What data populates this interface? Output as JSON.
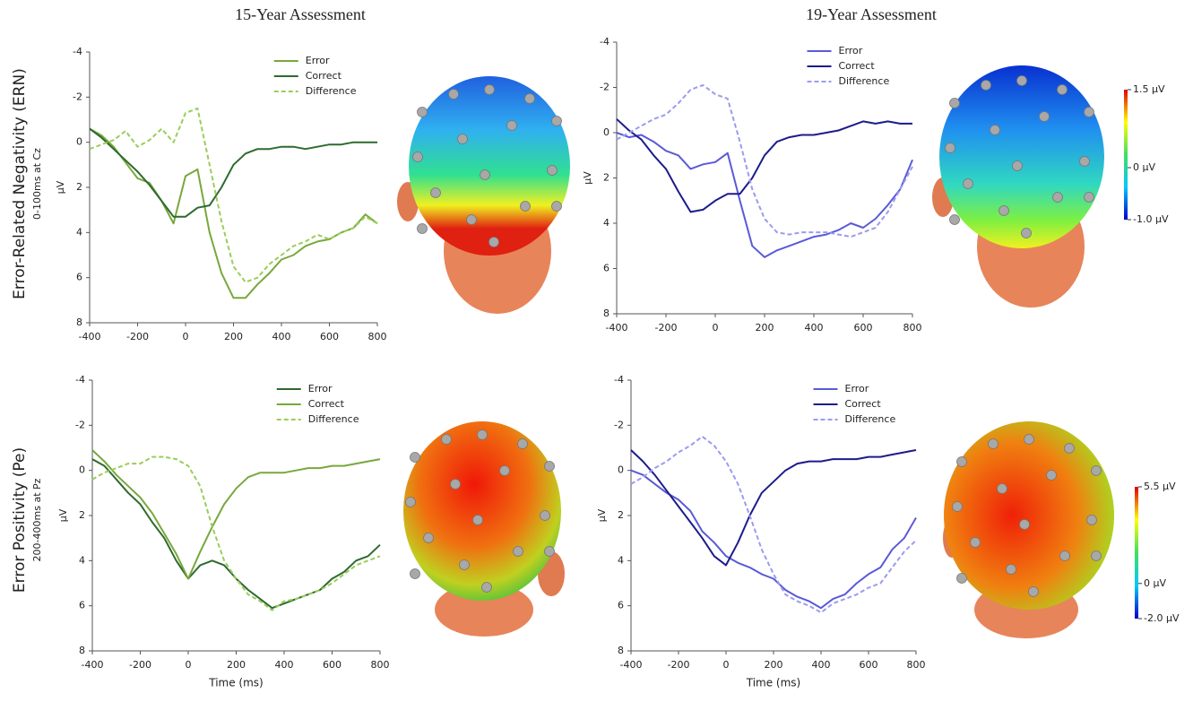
{
  "column_titles": [
    "15-Year Assessment",
    "19-Year Assessment"
  ],
  "row_labels": [
    {
      "title": "Error-Related Negativity (ERN)",
      "subtitle": "0-100ms at Cz"
    },
    {
      "title": "Error Positivity (Pe)",
      "subtitle": "200-400ms at Pz"
    }
  ],
  "colorbars": [
    {
      "lim": [
        -1.0,
        1.5
      ],
      "colors": [
        "#0000c8",
        "#00c8ff",
        "#40e060",
        "#ffff00",
        "#e00000"
      ],
      "ticks": [
        {
          "value": 1.5,
          "label": "1.5 μV"
        },
        {
          "value": 0,
          "label": "0 μV"
        },
        {
          "value": -1.0,
          "label": "-1.0 μV"
        }
      ]
    },
    {
      "lim": [
        -2.0,
        5.5
      ],
      "colors": [
        "#0000c8",
        "#00c8ff",
        "#40e060",
        "#ffff00",
        "#e00000"
      ],
      "ticks": [
        {
          "value": 5.5,
          "label": "5.5 μV"
        },
        {
          "value": 0,
          "label": "0 μV"
        },
        {
          "value": -2.0,
          "label": "-2.0 μV"
        }
      ]
    }
  ],
  "chart_data": [
    {
      "type": "line",
      "ylabel": "μV",
      "xlim": [
        -400,
        800
      ],
      "xticks": [
        -400,
        -200,
        0,
        200,
        400,
        600,
        800
      ],
      "ylim": [
        -4,
        8
      ],
      "y_inverted": true,
      "yticks": [
        -4,
        -2,
        0,
        2,
        4,
        6,
        8
      ],
      "legend": "upper right",
      "x": [
        -400,
        -350,
        -300,
        -250,
        -200,
        -150,
        -100,
        -50,
        0,
        50,
        100,
        150,
        200,
        250,
        300,
        350,
        400,
        450,
        500,
        550,
        600,
        650,
        700,
        750,
        800
      ],
      "series": [
        {
          "name": "Error",
          "color": "#78a83c",
          "dashed": false,
          "values": [
            -0.6,
            -0.3,
            0.2,
            0.9,
            1.6,
            1.8,
            2.6,
            3.6,
            1.5,
            1.2,
            4.0,
            5.8,
            6.9,
            6.9,
            6.3,
            5.8,
            5.2,
            5.0,
            4.6,
            4.4,
            4.3,
            4.0,
            3.8,
            3.2,
            3.6
          ]
        },
        {
          "name": "Correct",
          "color": "#2e6a2e",
          "dashed": false,
          "values": [
            -0.6,
            -0.2,
            0.3,
            0.8,
            1.3,
            1.9,
            2.6,
            3.3,
            3.3,
            2.9,
            2.8,
            2.0,
            1.0,
            0.5,
            0.3,
            0.3,
            0.2,
            0.2,
            0.3,
            0.2,
            0.1,
            0.1,
            0,
            0,
            0
          ]
        },
        {
          "name": "Difference",
          "color": "#9acd5a",
          "dashed": true,
          "values": [
            0.3,
            0.1,
            -0.1,
            -0.5,
            0.2,
            -0.1,
            -0.6,
            0,
            -1.3,
            -1.5,
            1.0,
            3.5,
            5.5,
            6.2,
            6.0,
            5.4,
            5.0,
            4.6,
            4.4,
            4.1,
            4.3,
            4.0,
            3.8,
            3.3,
            3.6
          ]
        }
      ]
    },
    {
      "type": "line",
      "ylabel": "μV",
      "xlim": [
        -400,
        800
      ],
      "xticks": [
        -400,
        -200,
        0,
        200,
        400,
        600,
        800
      ],
      "ylim": [
        -4,
        8
      ],
      "y_inverted": true,
      "yticks": [
        -4,
        -2,
        0,
        2,
        4,
        6,
        8
      ],
      "legend": "upper right",
      "x": [
        -400,
        -350,
        -300,
        -250,
        -200,
        -150,
        -100,
        -50,
        0,
        50,
        100,
        150,
        200,
        250,
        300,
        350,
        400,
        450,
        500,
        550,
        600,
        650,
        700,
        750,
        800
      ],
      "series": [
        {
          "name": "Error",
          "color": "#5a5ad8",
          "dashed": false,
          "values": [
            0.0,
            0.2,
            0.1,
            0.4,
            0.8,
            1.0,
            1.6,
            1.4,
            1.3,
            0.9,
            3.0,
            5.0,
            5.5,
            5.2,
            5.0,
            4.8,
            4.6,
            4.5,
            4.3,
            4.0,
            4.2,
            3.8,
            3.2,
            2.5,
            1.2
          ]
        },
        {
          "name": "Correct",
          "color": "#1c1c8c",
          "dashed": false,
          "values": [
            -0.6,
            -0.1,
            0.3,
            1.0,
            1.6,
            2.6,
            3.5,
            3.4,
            3.0,
            2.7,
            2.7,
            2.0,
            1.0,
            0.4,
            0.2,
            0.1,
            0.1,
            0,
            -0.1,
            -0.3,
            -0.5,
            -0.4,
            -0.5,
            -0.4,
            -0.4
          ]
        },
        {
          "name": "Difference",
          "color": "#9b9bef",
          "dashed": true,
          "values": [
            0.3,
            0,
            -0.3,
            -0.6,
            -0.8,
            -1.3,
            -1.9,
            -2.1,
            -1.7,
            -1.5,
            0.4,
            2.5,
            3.8,
            4.4,
            4.5,
            4.4,
            4.4,
            4.4,
            4.5,
            4.6,
            4.4,
            4.2,
            3.5,
            2.5,
            1.5
          ]
        }
      ]
    },
    {
      "type": "line",
      "ylabel": "μV",
      "xlabel": "Time (ms)",
      "xlim": [
        -400,
        800
      ],
      "xticks": [
        -400,
        -200,
        0,
        200,
        400,
        600,
        800
      ],
      "ylim": [
        -4,
        8
      ],
      "y_inverted": true,
      "yticks": [
        -4,
        -2,
        0,
        2,
        4,
        6,
        8
      ],
      "legend": "upper right",
      "x": [
        -400,
        -350,
        -300,
        -250,
        -200,
        -150,
        -100,
        -50,
        0,
        50,
        100,
        150,
        200,
        250,
        300,
        350,
        400,
        450,
        500,
        550,
        600,
        650,
        700,
        750,
        800
      ],
      "series": [
        {
          "name": "Error",
          "color": "#2e6a2e",
          "dashed": false,
          "values": [
            -0.5,
            -0.2,
            0.4,
            1.0,
            1.5,
            2.3,
            3.0,
            4.0,
            4.8,
            4.2,
            4.0,
            4.2,
            4.8,
            5.3,
            5.7,
            6.1,
            5.9,
            5.7,
            5.5,
            5.3,
            4.8,
            4.5,
            4.0,
            3.8,
            3.3
          ]
        },
        {
          "name": "Correct",
          "color": "#78a83c",
          "dashed": false,
          "values": [
            -0.9,
            -0.4,
            0.2,
            0.7,
            1.2,
            1.9,
            2.8,
            3.7,
            4.8,
            3.6,
            2.5,
            1.5,
            0.8,
            0.3,
            0.1,
            0.1,
            0.1,
            0,
            -0.1,
            -0.1,
            -0.2,
            -0.2,
            -0.3,
            -0.4,
            -0.5
          ]
        },
        {
          "name": "Difference",
          "color": "#9acd5a",
          "dashed": true,
          "values": [
            0.4,
            0.1,
            -0.1,
            -0.3,
            -0.3,
            -0.6,
            -0.6,
            -0.5,
            -0.2,
            0.7,
            2.5,
            4.0,
            4.8,
            5.5,
            5.8,
            6.2,
            5.8,
            5.7,
            5.5,
            5.3,
            5.0,
            4.6,
            4.2,
            4.0,
            3.8
          ]
        }
      ]
    },
    {
      "type": "line",
      "ylabel": "μV",
      "xlabel": "Time (ms)",
      "xlim": [
        -400,
        800
      ],
      "xticks": [
        -400,
        -200,
        0,
        200,
        400,
        600,
        800
      ],
      "ylim": [
        -4,
        8
      ],
      "y_inverted": true,
      "yticks": [
        -4,
        -2,
        0,
        2,
        4,
        6,
        8
      ],
      "legend": "upper right",
      "x": [
        -400,
        -350,
        -300,
        -250,
        -200,
        -150,
        -100,
        -50,
        0,
        50,
        100,
        150,
        200,
        250,
        300,
        350,
        400,
        450,
        500,
        550,
        600,
        650,
        700,
        750,
        800
      ],
      "series": [
        {
          "name": "Error",
          "color": "#5a5ad8",
          "dashed": false,
          "values": [
            0.0,
            0.2,
            0.6,
            1.0,
            1.3,
            1.8,
            2.7,
            3.2,
            3.8,
            4.1,
            4.3,
            4.6,
            4.8,
            5.3,
            5.6,
            5.8,
            6.1,
            5.7,
            5.5,
            5.0,
            4.6,
            4.3,
            3.5,
            3.0,
            2.1
          ]
        },
        {
          "name": "Correct",
          "color": "#1c1c8c",
          "dashed": false,
          "values": [
            -0.9,
            -0.4,
            0.2,
            0.9,
            1.6,
            2.3,
            3.0,
            3.8,
            4.2,
            3.2,
            2.0,
            1.0,
            0.5,
            0,
            -0.3,
            -0.4,
            -0.4,
            -0.5,
            -0.5,
            -0.5,
            -0.6,
            -0.6,
            -0.7,
            -0.8,
            -0.9
          ]
        },
        {
          "name": "Difference",
          "color": "#9b9bef",
          "dashed": true,
          "values": [
            0.6,
            0.3,
            -0.1,
            -0.4,
            -0.8,
            -1.1,
            -1.5,
            -1.1,
            -0.4,
            0.6,
            2.0,
            3.5,
            4.6,
            5.5,
            5.8,
            6.0,
            6.3,
            5.9,
            5.7,
            5.5,
            5.2,
            5.0,
            4.3,
            3.6,
            3.1
          ]
        }
      ]
    }
  ]
}
